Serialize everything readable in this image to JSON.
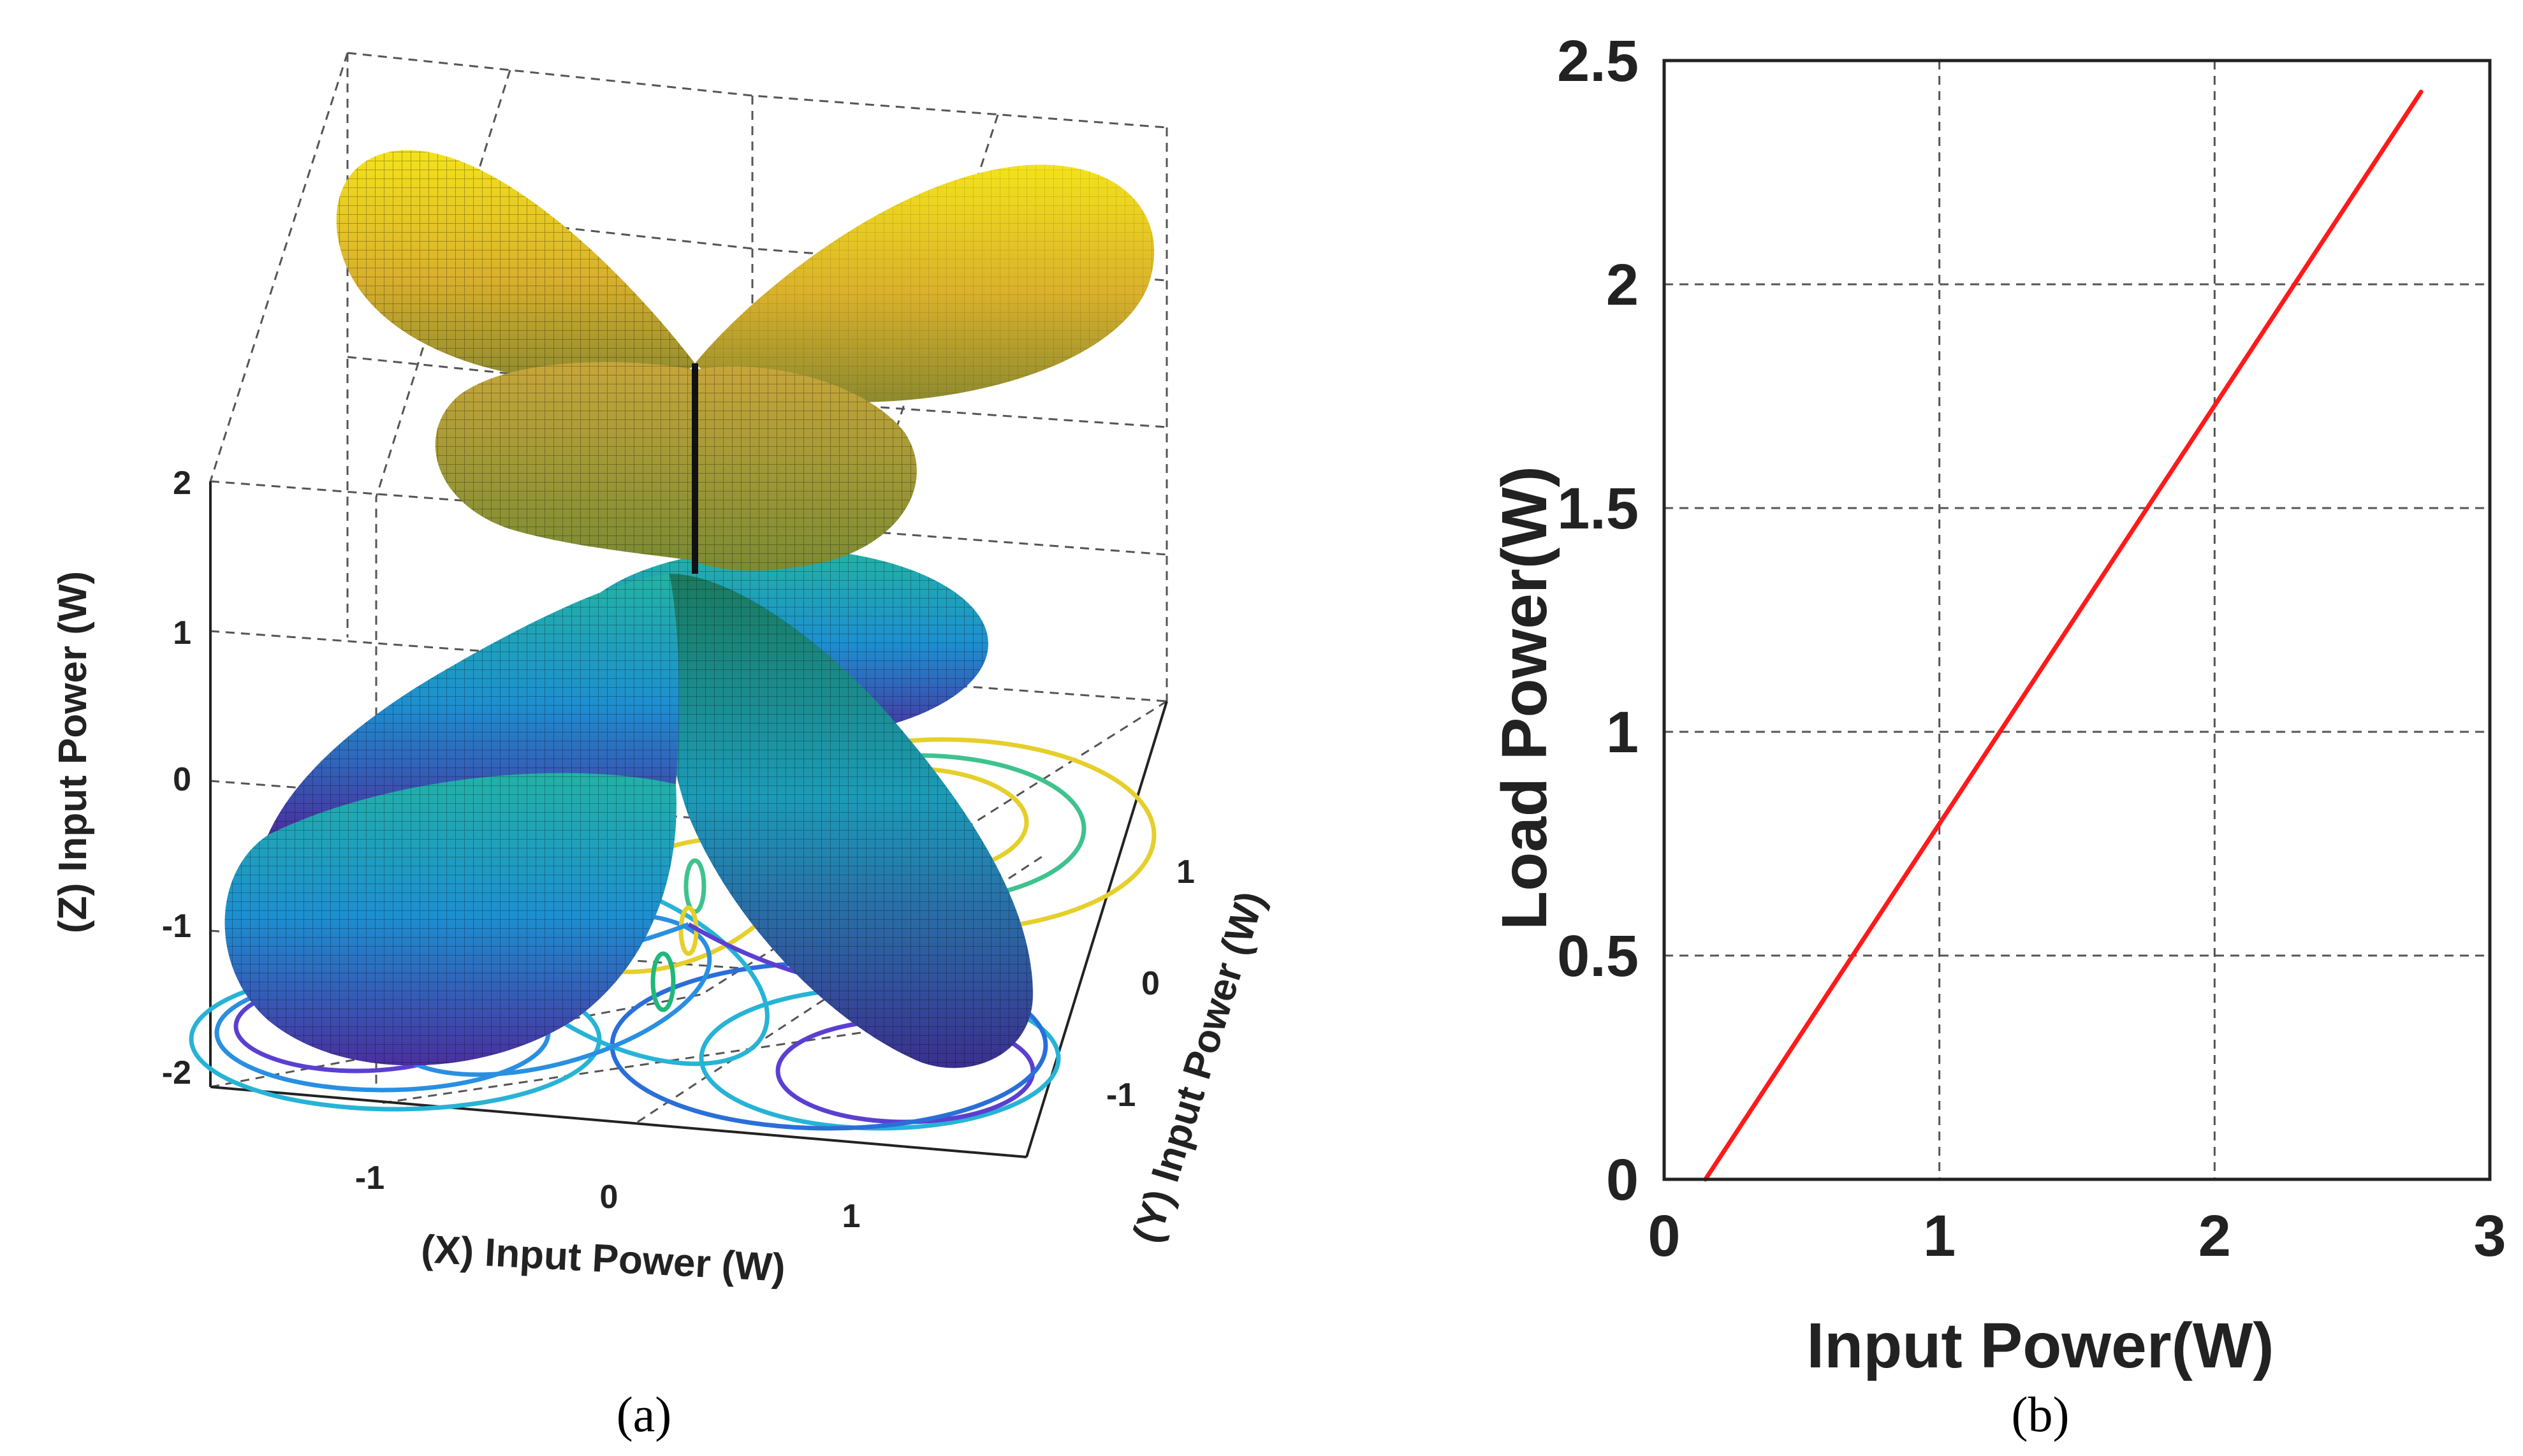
{
  "colors": {
    "line": "#ff1a1a",
    "axis": "#222222",
    "grid": "#555555",
    "lobe_top": "#f2e21c",
    "lobe_mid": "#cda23a",
    "lobe_bottom": "#1fb3a6",
    "lobe_base": "#4b2fa3"
  },
  "panels": [
    {
      "caption": "(a)",
      "chart_data": {
        "type": "surface3d",
        "xlabel": "(X) Input Power (W)",
        "ylabel": "(Y) Input Power (W)",
        "zlabel": "(Z) Input Power (W)",
        "x_ticks": [
          "-1",
          "0",
          "1"
        ],
        "y_ticks": [
          "1",
          "0",
          "-1"
        ],
        "z_ticks": [
          "2",
          "1",
          "0",
          "-1",
          "-2"
        ],
        "xlim": [
          -1.6,
          1.6
        ],
        "ylim": [
          -1.6,
          1.6
        ],
        "zlim": [
          -2.2,
          2.2
        ],
        "colormap": "parula",
        "projection_contours": true
      }
    },
    {
      "caption": "(b)",
      "chart_data": {
        "type": "line",
        "title": "",
        "xlabel": "Input Power(W)",
        "ylabel": "Load Power(W)",
        "xlim": [
          0,
          3
        ],
        "ylim": [
          0,
          2.5
        ],
        "x_ticks": [
          "0",
          "1",
          "2",
          "3"
        ],
        "y_ticks": [
          "0",
          "0.5",
          "1",
          "1.5",
          "2",
          "2.5"
        ],
        "grid": true,
        "series": [
          {
            "name": "Load Power",
            "color": "#ff1a1a",
            "x": [
              0.15,
              2.75
            ],
            "y": [
              0,
              2.43
            ]
          }
        ]
      }
    }
  ]
}
